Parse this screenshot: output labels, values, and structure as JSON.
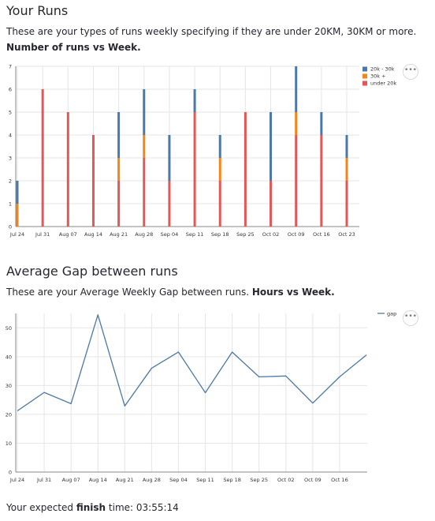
{
  "runs_section": {
    "title": "Your Runs",
    "description_prefix": "These are your types of runs weekly specifying if they are under 20KM, 30KM or more.",
    "description_bold": "Number of runs vs Week."
  },
  "gap_section": {
    "title": "Average Gap between runs",
    "description_prefix": "These are your Average Weekly Gap between runs.",
    "description_bold": "Hours vs Week."
  },
  "footer": {
    "prefix": "Your expected",
    "bold": "finish",
    "suffix": "time: 03:55:14"
  },
  "menu_icon": "more-horizontal-icon",
  "chart_data": [
    {
      "type": "bar",
      "stacked": true,
      "categories": [
        "Jul 24",
        "Jul 31",
        "Aug 07",
        "Aug 14",
        "Aug 21",
        "Aug 28",
        "Sep 04",
        "Sep 11",
        "Sep 18",
        "Sep 25",
        "Oct 02",
        "Oct 09",
        "Oct 16",
        "Oct 23"
      ],
      "series": [
        {
          "name": "under 20k",
          "color": "#e45756",
          "values": [
            0,
            6,
            5,
            4,
            2,
            3,
            2,
            5,
            2,
            5,
            2,
            4,
            4,
            2
          ]
        },
        {
          "name": "30k +",
          "color": "#f58518",
          "values": [
            1,
            0,
            0,
            0,
            1,
            1,
            0,
            0,
            1,
            0,
            0,
            1,
            0,
            1
          ]
        },
        {
          "name": "20k - 30k",
          "color": "#4c78a8",
          "values": [
            1,
            0,
            0,
            0,
            2,
            2,
            2,
            1,
            1,
            0,
            3,
            2,
            1,
            1
          ]
        }
      ],
      "legend_order": [
        "20k - 30k",
        "30k +",
        "under 20k"
      ],
      "ylim": [
        0,
        7
      ],
      "yticks": [
        0,
        1,
        2,
        3,
        4,
        5,
        6,
        7
      ],
      "grid": true,
      "legend": "top-right"
    },
    {
      "type": "line",
      "x": [
        "Jul 24",
        "Jul 31",
        "Aug 07",
        "Aug 14",
        "Aug 21",
        "Aug 28",
        "Sep 04",
        "Sep 11",
        "Sep 18",
        "Sep 25",
        "Oct 02",
        "Oct 09",
        "Oct 16",
        "Oct 23"
      ],
      "series": [
        {
          "name": "gap",
          "color": "#4c78a8",
          "values": [
            21.2,
            27.6,
            23.7,
            54.5,
            22.9,
            36,
            41.6,
            27.5,
            41.6,
            33,
            33.3,
            23.9,
            33,
            40.6
          ]
        }
      ],
      "xticks": [
        "Jul 24",
        "Jul 31",
        "Aug 07",
        "Aug 14",
        "Aug 21",
        "Aug 28",
        "Sep 04",
        "Sep 11",
        "Sep 18",
        "Sep 25",
        "Oct 02",
        "Oct 09",
        "Oct 16"
      ],
      "ylim": [
        0,
        55
      ],
      "yticks": [
        0,
        10,
        20,
        30,
        40,
        50
      ],
      "grid": true,
      "legend": "top-right"
    }
  ]
}
